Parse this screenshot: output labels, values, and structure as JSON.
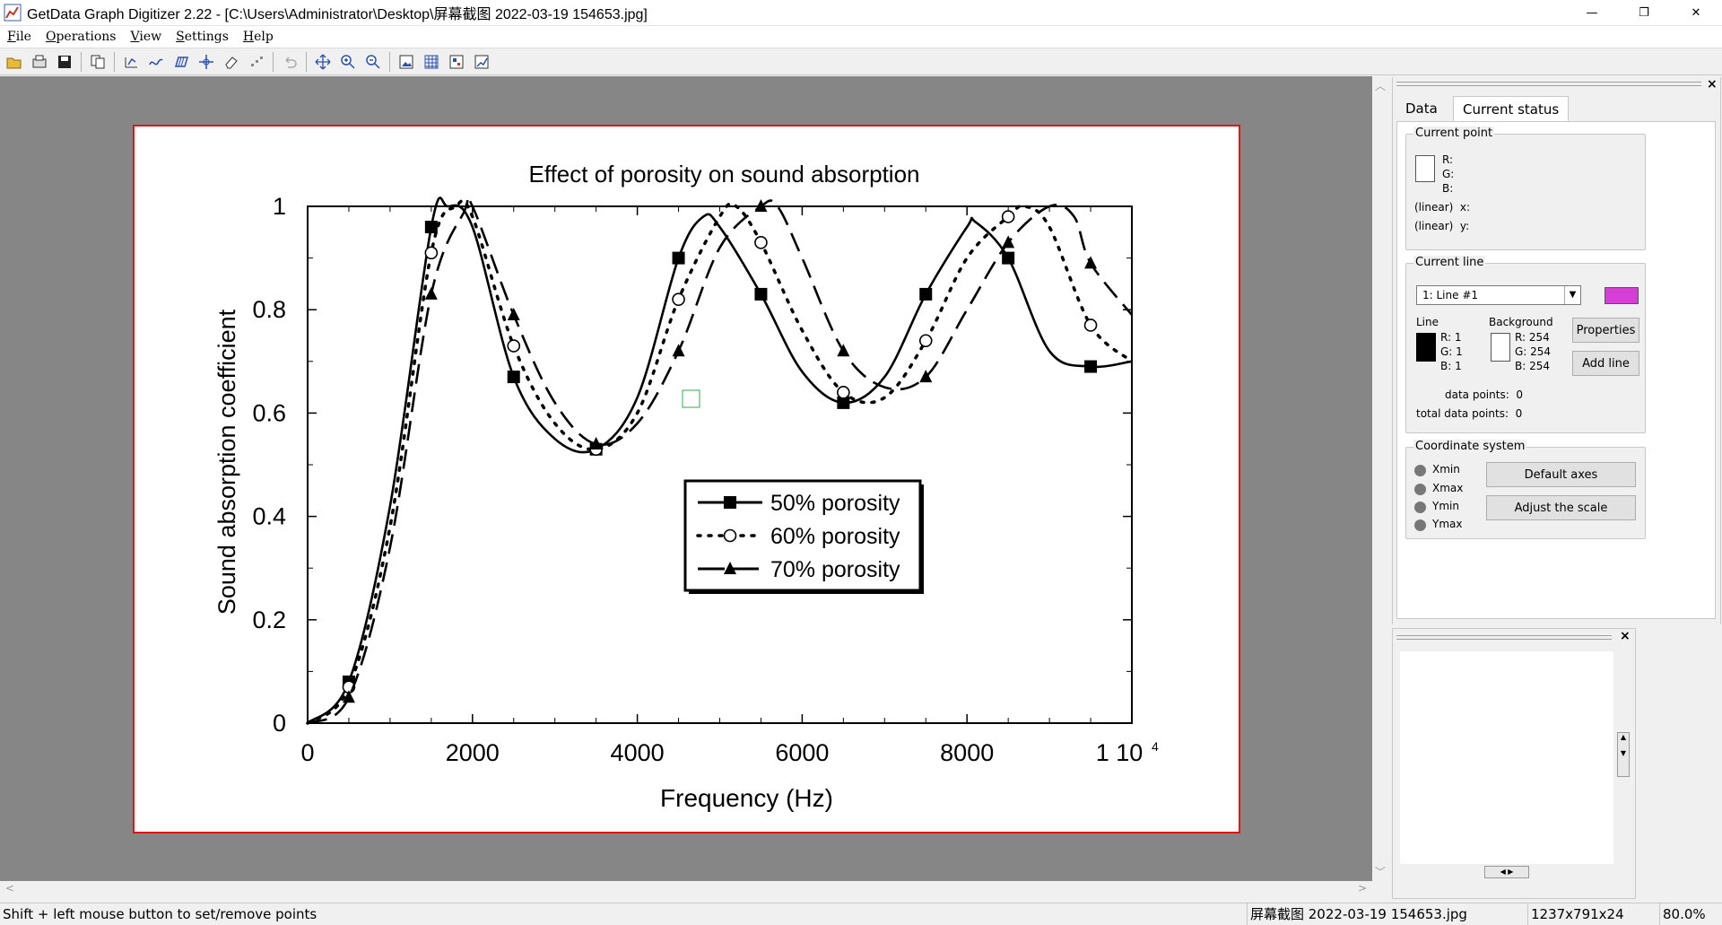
{
  "window": {
    "title": "GetData Graph Digitizer 2.22 - [C:\\Users\\Administrator\\Desktop\\屏幕截图 2022-03-19 154653.jpg]",
    "minimize": "—",
    "maximize": "❐",
    "close": "✕"
  },
  "menu": [
    "File",
    "Operations",
    "View",
    "Settings",
    "Help"
  ],
  "toolbar_icons": [
    "open-icon",
    "scan-icon",
    "save-icon",
    "copy-icon",
    "point-capture-icon",
    "line-capture-icon",
    "area-capture-icon",
    "axes-icon",
    "eraser-icon",
    "digitize-icon",
    "undo-icon",
    "move-icon",
    "zoom-in-icon",
    "zoom-out-icon",
    "image-icon",
    "grid-icon",
    "select-icon",
    "graph-icon"
  ],
  "chart_data": {
    "type": "line",
    "title": "Effect of porosity on sound absorption",
    "xlabel": "Frequency (Hz)",
    "ylabel": "Sound absorption coefficient",
    "xlim": [
      0,
      10000
    ],
    "ylim": [
      0,
      1
    ],
    "xticks": [
      "0",
      "2000",
      "4000",
      "6000",
      "8000",
      "1 10"
    ],
    "xtick_exponent": "4",
    "yticks": [
      "0",
      "0.2",
      "0.4",
      "0.6",
      "0.8",
      "1"
    ],
    "legend_position": "bottom-right",
    "series": [
      {
        "name": "50% porosity",
        "marker": "square",
        "style": "solid",
        "x": [
          0,
          500,
          1000,
          1500,
          1700,
          2000,
          2500,
          3000,
          3500,
          4000,
          4500,
          4800,
          5000,
          5500,
          6000,
          6500,
          7000,
          7500,
          8000,
          8100,
          8500,
          9000,
          9500,
          10000
        ],
        "y": [
          0,
          0.08,
          0.42,
          0.96,
          1.0,
          0.96,
          0.67,
          0.55,
          0.53,
          0.63,
          0.9,
          0.98,
          0.96,
          0.83,
          0.68,
          0.62,
          0.67,
          0.83,
          0.96,
          0.97,
          0.9,
          0.72,
          0.69,
          0.7
        ]
      },
      {
        "name": "60% porosity",
        "marker": "circle",
        "style": "dotted",
        "x": [
          0,
          500,
          1000,
          1500,
          1800,
          2000,
          2500,
          3000,
          3500,
          4000,
          4500,
          5000,
          5200,
          5500,
          6000,
          6500,
          7000,
          7500,
          8000,
          8500,
          8700,
          9000,
          9500,
          10000
        ],
        "y": [
          0,
          0.07,
          0.38,
          0.91,
          1.0,
          0.98,
          0.73,
          0.58,
          0.53,
          0.6,
          0.82,
          0.98,
          1.0,
          0.93,
          0.76,
          0.64,
          0.63,
          0.74,
          0.9,
          0.98,
          1.0,
          0.96,
          0.77,
          0.7
        ]
      },
      {
        "name": "70% porosity",
        "marker": "triangle",
        "style": "dashed",
        "x": [
          0,
          500,
          1000,
          1500,
          1900,
          2000,
          2500,
          3000,
          3500,
          4000,
          4500,
          5000,
          5500,
          5700,
          6000,
          6500,
          7000,
          7500,
          8000,
          8500,
          9000,
          9300,
          9500,
          10000
        ],
        "y": [
          0,
          0.05,
          0.34,
          0.83,
          0.99,
          1.0,
          0.79,
          0.62,
          0.54,
          0.58,
          0.72,
          0.92,
          1.0,
          1.0,
          0.9,
          0.72,
          0.65,
          0.67,
          0.8,
          0.93,
          1.0,
          0.98,
          0.89,
          0.79
        ]
      }
    ]
  },
  "panel": {
    "tabs": [
      "Data",
      "Current status"
    ],
    "current_point": {
      "label": "Current point",
      "r": "R:",
      "g": "G:",
      "b": "B:",
      "x": "(linear)  x:",
      "y": "(linear)  y:"
    },
    "current_line": {
      "label": "Current line",
      "selected": "1: Line #1",
      "line_color": "#d63fd6",
      "line_label": "Line",
      "line_r": "R: 1",
      "line_g": "G: 1",
      "line_b": "B: 1",
      "bg_label": "Background",
      "bg_r": "R: 254",
      "bg_g": "G: 254",
      "bg_b": "B: 254",
      "properties_btn": "Properties",
      "add_line_btn": "Add line",
      "data_points": "data points:  0",
      "total_data_points": "total data points:  0"
    },
    "coordinate_system": {
      "label": "Coordinate system",
      "options": [
        "Xmin",
        "Xmax",
        "Ymin",
        "Ymax"
      ],
      "default_axes_btn": "Default axes",
      "adjust_scale_btn": "Adjust the scale"
    }
  },
  "status": {
    "hint": "Shift + left mouse button to set/remove points",
    "filename": "屏幕截图 2022-03-19 154653.jpg",
    "dimensions": "1237x791x24",
    "zoom": "80.0%"
  }
}
